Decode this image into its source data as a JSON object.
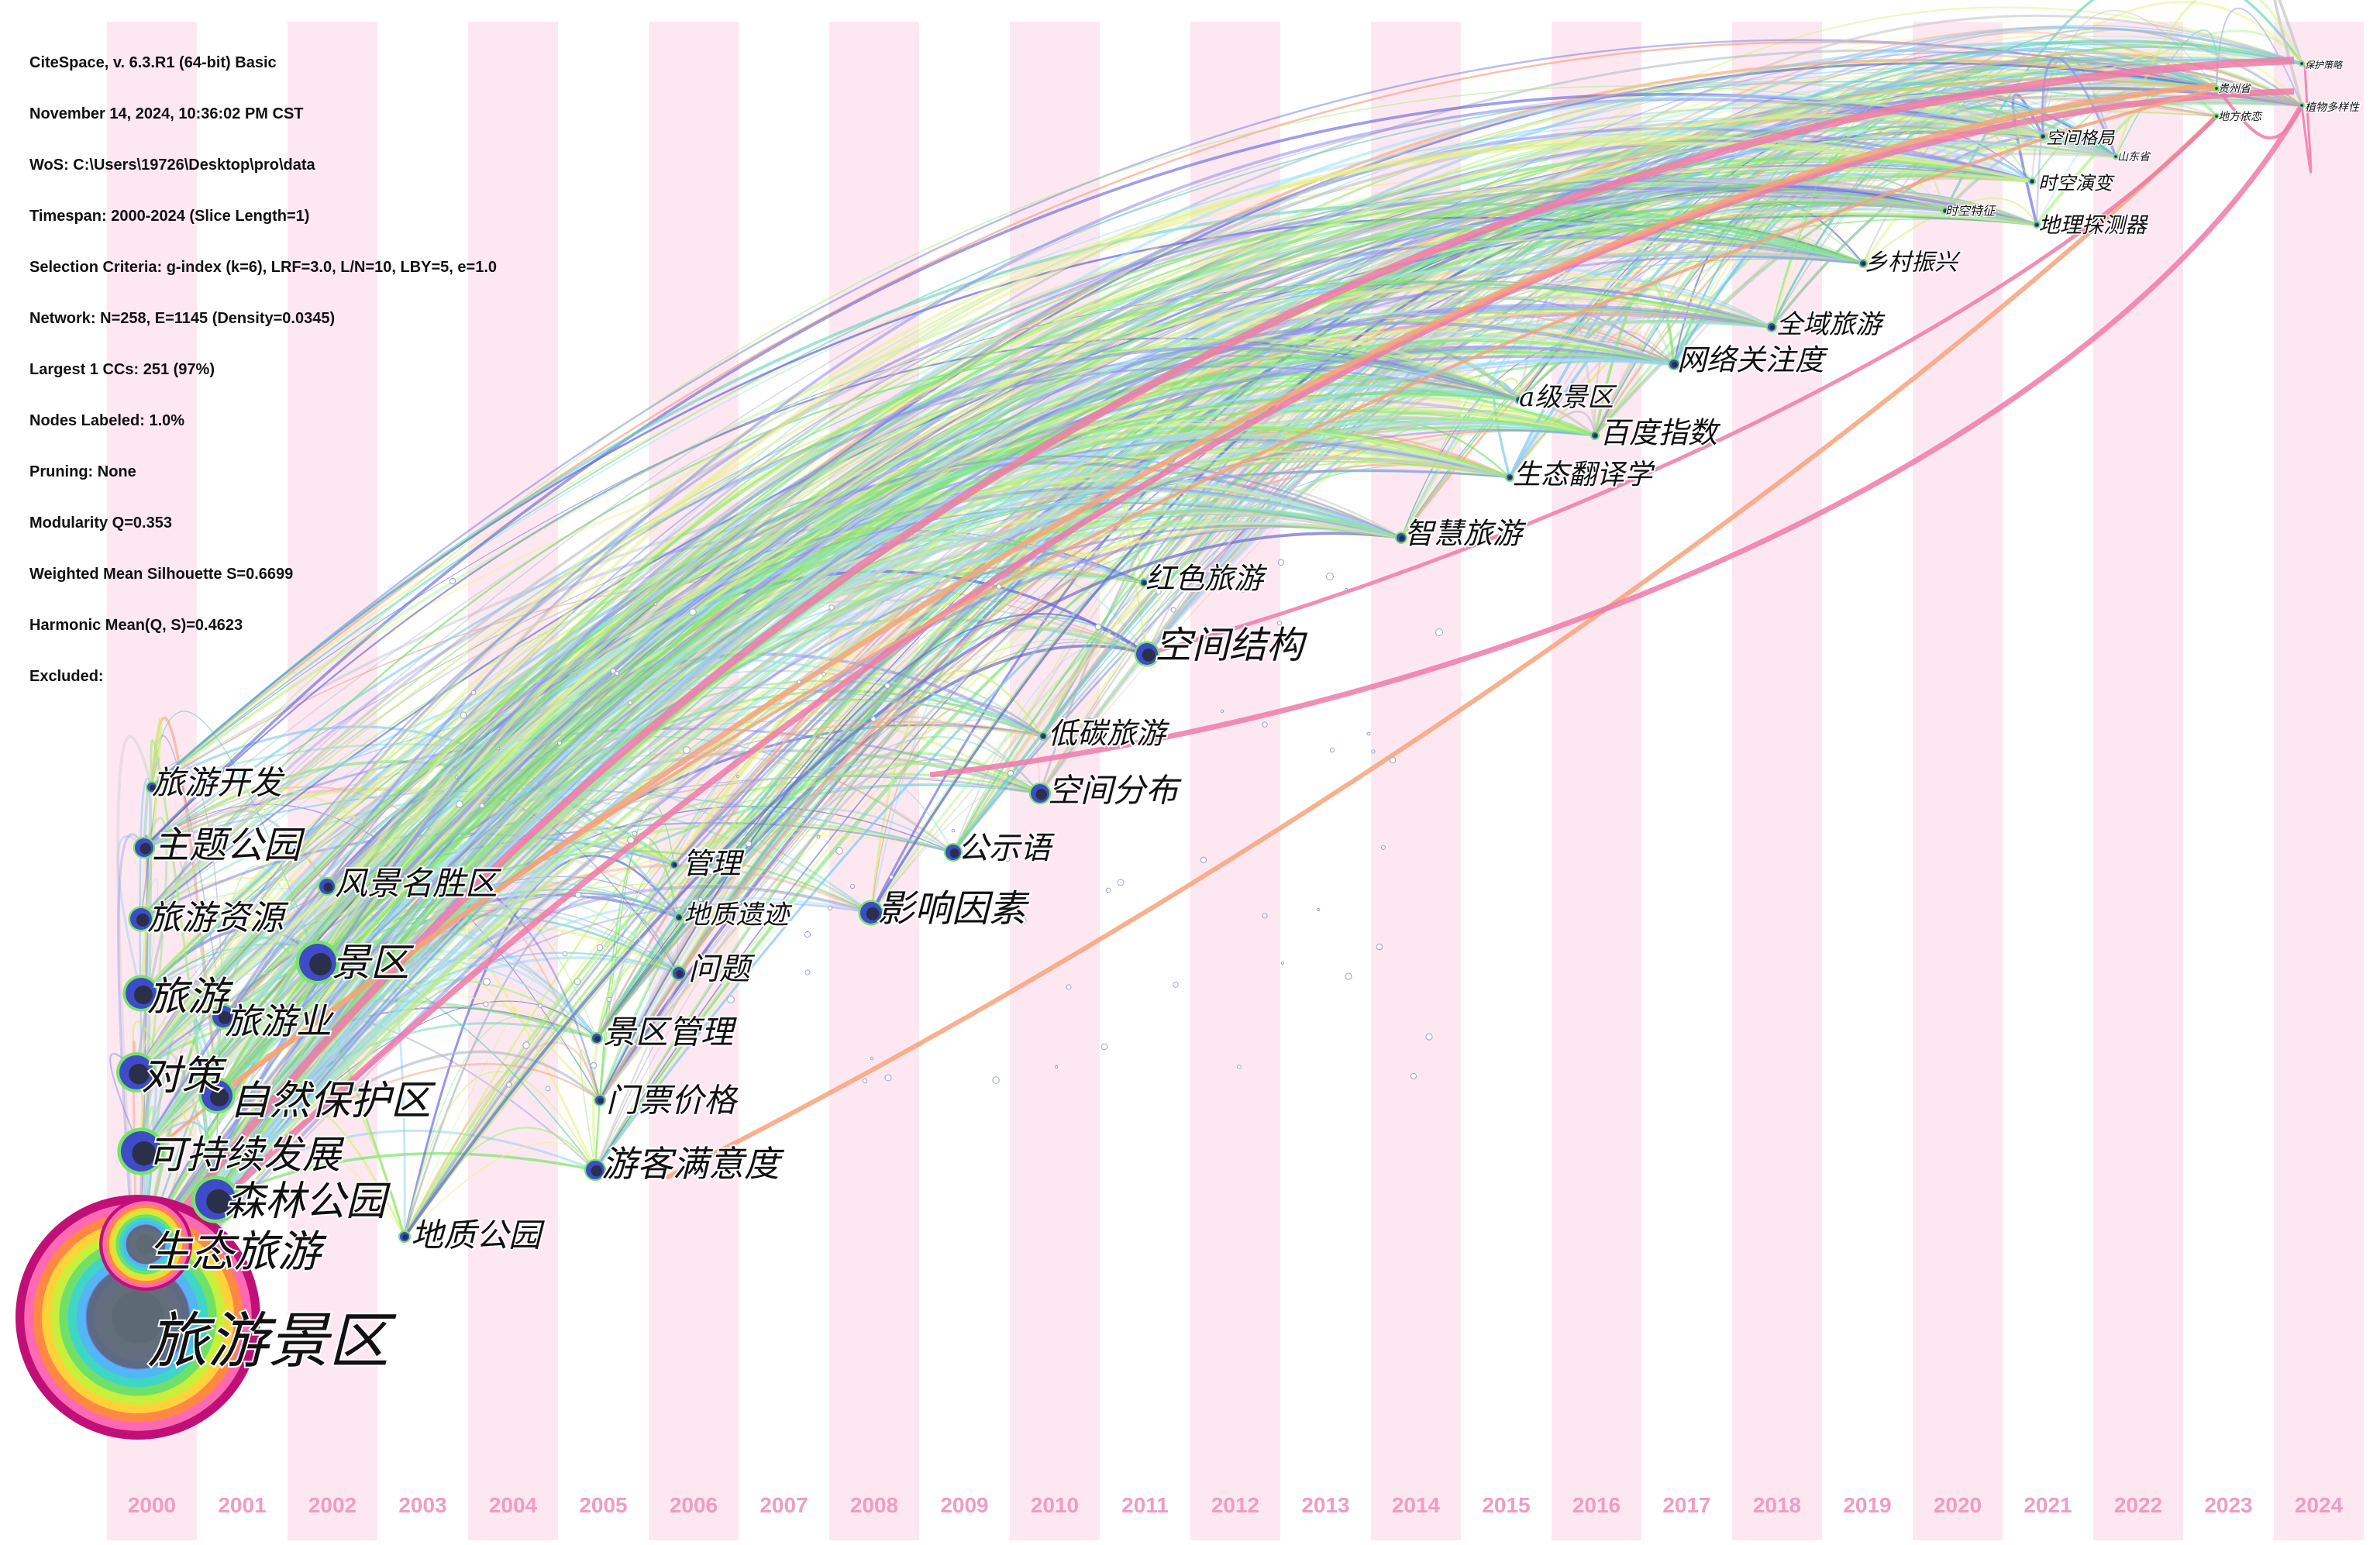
{
  "info": {
    "lines": [
      "CiteSpace, v. 6.3.R1 (64-bit) Basic",
      "November 14, 2024, 10:36:02 PM CST",
      "WoS: C:\\Users\\19726\\Desktop\\pro\\data",
      "Timespan: 2000-2024 (Slice Length=1)",
      "Selection Criteria: g-index (k=6), LRF=3.0, L/N=10, LBY=5, e=1.0",
      "Network: N=258, E=1145 (Density=0.0345)",
      "Largest 1 CCs: 251 (97%)",
      "Nodes Labeled: 1.0%",
      "Pruning: None",
      "Modularity Q=0.353",
      "Weighted Mean Silhouette S=0.6699",
      "Harmonic Mean(Q, S)=0.4623",
      "Excluded:"
    ]
  },
  "years": [
    "2000",
    "2001",
    "2002",
    "2003",
    "2004",
    "2005",
    "2006",
    "2007",
    "2008",
    "2009",
    "2010",
    "2011",
    "2012",
    "2013",
    "2014",
    "2015",
    "2016",
    "2017",
    "2018",
    "2019",
    "2020",
    "2021",
    "2022",
    "2023",
    "2024"
  ],
  "nodes": [
    {
      "label": "旅游景区",
      "year": "2000",
      "size": "huge"
    },
    {
      "label": "生态旅游",
      "year": "2000",
      "size": "large"
    },
    {
      "label": "森林公园",
      "year": "2001",
      "size": "medium"
    },
    {
      "label": "可持续发展",
      "year": "2000",
      "size": "medium"
    },
    {
      "label": "自然保护区",
      "year": "2001",
      "size": "medium"
    },
    {
      "label": "对策",
      "year": "2000",
      "size": "medium"
    },
    {
      "label": "旅游业",
      "year": "2001",
      "size": "small"
    },
    {
      "label": "旅游",
      "year": "2000",
      "size": "medium"
    },
    {
      "label": "景区",
      "year": "2002",
      "size": "medium"
    },
    {
      "label": "旅游资源",
      "year": "2000",
      "size": "small"
    },
    {
      "label": "风景名胜区",
      "year": "2002",
      "size": "small"
    },
    {
      "label": "主题公园",
      "year": "2000",
      "size": "small"
    },
    {
      "label": "旅游开发",
      "year": "2000",
      "size": "tiny"
    },
    {
      "label": "地质公园",
      "year": "2003",
      "size": "tiny"
    },
    {
      "label": "游客满意度",
      "year": "2005",
      "size": "small"
    },
    {
      "label": "门票价格",
      "year": "2005",
      "size": "tiny"
    },
    {
      "label": "景区管理",
      "year": "2005",
      "size": "tiny"
    },
    {
      "label": "问题",
      "year": "2006",
      "size": "tiny"
    },
    {
      "label": "地质遗迹",
      "year": "2006",
      "size": "tiny"
    },
    {
      "label": "管理",
      "year": "2006",
      "size": "tiny"
    },
    {
      "label": "影响因素",
      "year": "2008",
      "size": "small"
    },
    {
      "label": "公示语",
      "year": "2009",
      "size": "small"
    },
    {
      "label": "空间分布",
      "year": "2010",
      "size": "small"
    },
    {
      "label": "低碳旅游",
      "year": "2010",
      "size": "tiny"
    },
    {
      "label": "空间结构",
      "year": "2011",
      "size": "small"
    },
    {
      "label": "红色旅游",
      "year": "2011",
      "size": "tiny"
    },
    {
      "label": "智慧旅游",
      "year": "2014",
      "size": "tiny"
    },
    {
      "label": "生态翻译学",
      "year": "2015",
      "size": "tiny"
    },
    {
      "label": "百度指数",
      "year": "2016",
      "size": "tiny"
    },
    {
      "label": "a级景区",
      "year": "2015",
      "size": "tiny"
    },
    {
      "label": "网络关注度",
      "year": "2017",
      "size": "tiny"
    },
    {
      "label": "全域旅游",
      "year": "2018",
      "size": "tiny"
    },
    {
      "label": "乡村振兴",
      "year": "2019",
      "size": "tiny"
    },
    {
      "label": "地理探测器",
      "year": "2021",
      "size": "tiny"
    },
    {
      "label": "时空特征",
      "year": "2020",
      "size": "tiny"
    },
    {
      "label": "时空演变",
      "year": "2021",
      "size": "tiny"
    },
    {
      "label": "山东省",
      "year": "2022",
      "size": "tiny"
    },
    {
      "label": "空间格局",
      "year": "2021",
      "size": "tiny"
    },
    {
      "label": "贵州省",
      "year": "2023",
      "size": "tiny"
    },
    {
      "label": "地方依恋",
      "year": "2023",
      "size": "tiny"
    },
    {
      "label": "保护策略",
      "year": "2024",
      "size": "tiny"
    },
    {
      "label": "植物多样性",
      "year": "2024",
      "size": "tiny"
    }
  ]
}
